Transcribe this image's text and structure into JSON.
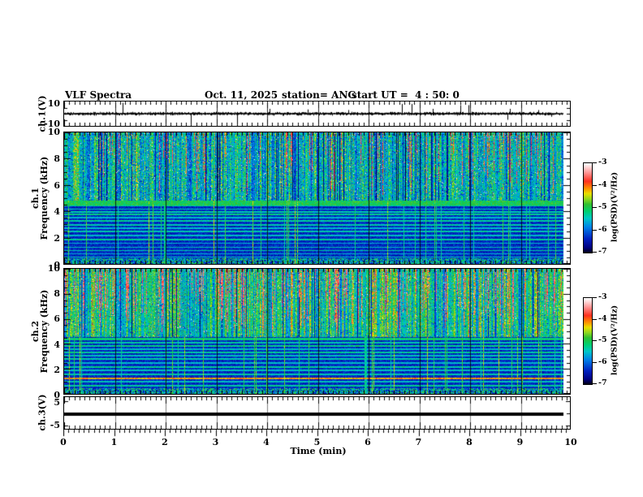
{
  "header": {
    "title": "VLF Spectra",
    "date": "Oct. 11, 2025",
    "station": "station= ANG",
    "start_ut": "start UT =  4 : 50: 0"
  },
  "panels": {
    "ch1v": {
      "label": "ch.1(V)",
      "ytop": "10",
      "ybottom": "-10"
    },
    "spec1": {
      "label_channel": "ch.1",
      "label_axis": "Frequency (kHz)",
      "yticks": [
        "10",
        "8",
        "6",
        "4",
        "2",
        "0"
      ]
    },
    "spec2": {
      "label_channel": "ch.2",
      "label_axis": "Frequency (kHz)",
      "yticks": [
        "10",
        "8",
        "6",
        "4",
        "2",
        "0"
      ]
    },
    "ch3v": {
      "label": "ch.3(V)",
      "ytop": "5",
      "ybottom": "-5"
    }
  },
  "xaxis": {
    "label": "Time (min)",
    "ticks": [
      "0",
      "1",
      "2",
      "3",
      "4",
      "5",
      "6",
      "7",
      "8",
      "9",
      "10"
    ]
  },
  "colorbars": [
    {
      "ticks": [
        "-3",
        "-4",
        "-5",
        "-6",
        "-7"
      ],
      "label": "log(PSD)(V²/Hz)"
    },
    {
      "ticks": [
        "-3",
        "-4",
        "-5",
        "-6",
        "-7"
      ],
      "label": "log(PSD)(V²/Hz)"
    }
  ],
  "chart_data": [
    {
      "id": "ch1_waveform",
      "type": "line",
      "name": "ch.1 voltage waveform",
      "ylabel": "ch.1(V)",
      "ylim": [
        -10,
        10
      ],
      "xlim_min": [
        0,
        10
      ],
      "description": "dense noise band around 0 V, amplitude about ±1.5 V, data ends at 9.84 min",
      "seed": 11,
      "noise_amp": 1.3,
      "spikes": [
        [
          1.15,
          9
        ],
        [
          2.0,
          4
        ],
        [
          2.5,
          -9
        ],
        [
          3.4,
          -9
        ],
        [
          4.05,
          4
        ],
        [
          4.8,
          3.5
        ],
        [
          5.6,
          3
        ],
        [
          6.65,
          8
        ],
        [
          6.85,
          8
        ],
        [
          7.27,
          4
        ],
        [
          7.8,
          7
        ],
        [
          7.97,
          7
        ],
        [
          8.74,
          -5
        ],
        [
          8.78,
          4
        ],
        [
          9.35,
          3
        ],
        [
          9.6,
          -2.5
        ]
      ]
    },
    {
      "id": "ch1_spectrogram",
      "type": "heatmap",
      "name": "ch.1 VLF spectrogram",
      "ylabel": "Frequency (kHz)",
      "ylim": [
        0,
        10
      ],
      "xlim_min": [
        0,
        10
      ],
      "colorscale": {
        "label": "log(PSD)(V²/Hz)",
        "min": -7,
        "max": -3
      },
      "seed": 21,
      "cut_khz": 4.85,
      "upper": {
        "base": 0.52,
        "var": 0.34,
        "red_prob": 0.1,
        "red_val": 0.78,
        "gap_prob": 0.1
      },
      "streak_prob": 0.05,
      "bottom_act_khz": 0.45,
      "bands": [
        [
          4.7,
          0.5,
          0.22
        ],
        [
          4.45,
          0.42,
          0.06
        ],
        [
          4.2,
          0.38,
          0.05
        ],
        [
          4.0,
          0.4,
          0.06
        ],
        [
          3.8,
          0.44,
          0.07
        ],
        [
          3.55,
          0.36,
          0.05
        ],
        [
          3.3,
          0.42,
          0.06
        ],
        [
          3.0,
          0.4,
          0.07
        ],
        [
          2.75,
          0.35,
          0.05
        ],
        [
          2.5,
          0.4,
          0.06
        ],
        [
          2.2,
          0.37,
          0.05
        ],
        [
          1.9,
          0.42,
          0.07
        ],
        [
          1.6,
          0.35,
          0.05
        ],
        [
          1.3,
          0.38,
          0.05
        ],
        [
          1.05,
          0.4,
          0.06
        ],
        [
          0.8,
          0.35,
          0.05
        ],
        [
          0.55,
          0.38,
          0.05
        ]
      ]
    },
    {
      "id": "ch2_spectrogram",
      "type": "heatmap",
      "name": "ch.2 VLF spectrogram",
      "ylabel": "Frequency (kHz)",
      "ylim": [
        0,
        10
      ],
      "xlim_min": [
        0,
        10
      ],
      "colorscale": {
        "label": "log(PSD)(V²/Hz)",
        "min": -7,
        "max": -3
      },
      "seed": 77,
      "cut_khz": 4.55,
      "upper": {
        "base": 0.6,
        "var": 0.27,
        "red_prob": 0.22,
        "red_val": 0.8,
        "gap_prob": 0.05
      },
      "streak_prob": 0.06,
      "bottom_act_khz": 0.5,
      "bands": [
        [
          4.4,
          0.46,
          0.1
        ],
        [
          4.1,
          0.4,
          0.06
        ],
        [
          3.85,
          0.44,
          0.07
        ],
        [
          3.6,
          0.36,
          0.05
        ],
        [
          3.35,
          0.42,
          0.06
        ],
        [
          3.1,
          0.38,
          0.06
        ],
        [
          2.8,
          0.4,
          0.06
        ],
        [
          2.5,
          0.36,
          0.05
        ],
        [
          2.2,
          0.42,
          0.06
        ],
        [
          1.9,
          0.38,
          0.05
        ],
        [
          1.6,
          0.4,
          0.06
        ],
        [
          1.25,
          0.7,
          0.05
        ],
        [
          1.0,
          0.38,
          0.05
        ],
        [
          0.7,
          0.42,
          0.06
        ]
      ]
    },
    {
      "id": "ch3_waveform",
      "type": "line",
      "name": "ch.3 voltage waveform",
      "ylabel": "ch.3(V)",
      "ylim": [
        -5,
        5
      ],
      "xlim_min": [
        0,
        10
      ],
      "description": "flat thick line at 0 V from 0 to 9.84 min",
      "value": 0
    }
  ],
  "colormap_stops": [
    [
      0.0,
      "#000020"
    ],
    [
      0.05,
      "#000080"
    ],
    [
      0.15,
      "#0020c0"
    ],
    [
      0.28,
      "#0080e8"
    ],
    [
      0.38,
      "#00c8c8"
    ],
    [
      0.46,
      "#00d070"
    ],
    [
      0.54,
      "#30c030"
    ],
    [
      0.6,
      "#90d820"
    ],
    [
      0.66,
      "#e8e000"
    ],
    [
      0.72,
      "#ff9000"
    ],
    [
      0.8,
      "#ff3020"
    ],
    [
      0.9,
      "#ff9898"
    ],
    [
      1.0,
      "#ffffff"
    ]
  ]
}
